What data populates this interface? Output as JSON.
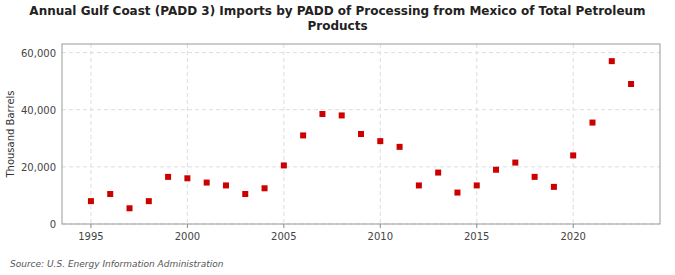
{
  "chart_data": {
    "type": "scatter",
    "title": "Annual Gulf Coast (PADD 3) Imports by PADD of Processing from Mexico of Total Petroleum\nProducts",
    "ylabel": "Thousand Barrels",
    "source": "Source: U.S. Energy Information Administration",
    "x": [
      1995,
      1996,
      1997,
      1998,
      1999,
      2000,
      2001,
      2002,
      2003,
      2004,
      2005,
      2006,
      2007,
      2008,
      2009,
      2010,
      2011,
      2012,
      2013,
      2014,
      2015,
      2016,
      2017,
      2018,
      2019,
      2020,
      2021,
      2022,
      2023
    ],
    "values": [
      8000,
      10500,
      5500,
      8000,
      16500,
      16000,
      14500,
      13500,
      10500,
      12500,
      20500,
      31000,
      38500,
      38000,
      31500,
      29000,
      27000,
      13500,
      18000,
      11000,
      13500,
      19000,
      21500,
      16500,
      13000,
      24000,
      35500,
      57000,
      49000
    ],
    "color": "#cc0000",
    "marker": "square",
    "xlim": [
      1993.5,
      2024.5
    ],
    "ylim": [
      0,
      63000
    ],
    "xticks": [
      1995,
      2000,
      2005,
      2010,
      2015,
      2020
    ],
    "yticks": [
      0,
      {
        "value": 20000,
        "label": "20,000"
      },
      {
        "value": 40000,
        "label": "40,000"
      },
      {
        "value": 60000,
        "label": "60,000"
      }
    ],
    "grid": true
  }
}
